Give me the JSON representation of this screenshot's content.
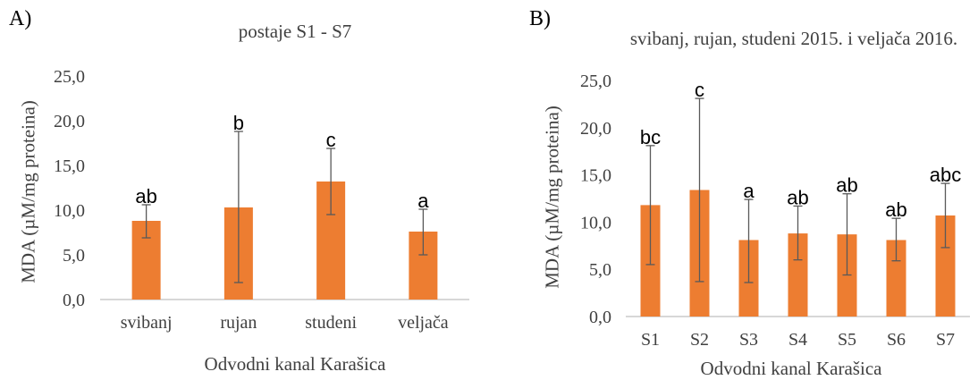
{
  "chart_data": [
    {
      "type": "bar",
      "panel_label": "A)",
      "title": "postaje S1 - S7",
      "xlabel": "Odvodni kanal Karašica",
      "ylabel": "MDA (µM/mg proteina)",
      "ylim": [
        0,
        25
      ],
      "y_ticks": [
        "0,0",
        "5,0",
        "10,0",
        "15,0",
        "20,0",
        "25,0"
      ],
      "categories": [
        "svibanj",
        "rujan",
        "studeni",
        "veljača"
      ],
      "values": [
        8.8,
        10.3,
        13.2,
        7.6
      ],
      "error_low": [
        6.9,
        1.9,
        9.5,
        5.0
      ],
      "error_high": [
        10.6,
        18.8,
        16.9,
        10.1
      ],
      "significance": [
        "ab",
        "b",
        "c",
        "a"
      ],
      "bar_color": "#ED7D31",
      "grid": false
    },
    {
      "type": "bar",
      "panel_label": "B)",
      "title": "svibanj, rujan, studeni 2015. i veljača 2016.",
      "xlabel": "Odvodni kanal Karašica",
      "ylabel": "MDA (µM/mg proteina)",
      "ylim": [
        0,
        25
      ],
      "y_ticks": [
        "0,0",
        "5,0",
        "10,0",
        "15,0",
        "20,0",
        "25,0"
      ],
      "categories": [
        "S1",
        "S2",
        "S3",
        "S4",
        "S5",
        "S6",
        "S7"
      ],
      "values": [
        11.8,
        13.4,
        8.1,
        8.8,
        8.7,
        8.1,
        10.7
      ],
      "error_low": [
        5.5,
        3.7,
        3.6,
        6.0,
        4.4,
        5.9,
        7.3
      ],
      "error_high": [
        18.1,
        23.1,
        12.4,
        11.7,
        13.0,
        10.4,
        14.1
      ],
      "significance": [
        "bc",
        "c",
        "a",
        "ab",
        "ab",
        "ab",
        "abc"
      ],
      "bar_color": "#ED7D31",
      "grid": false
    }
  ]
}
